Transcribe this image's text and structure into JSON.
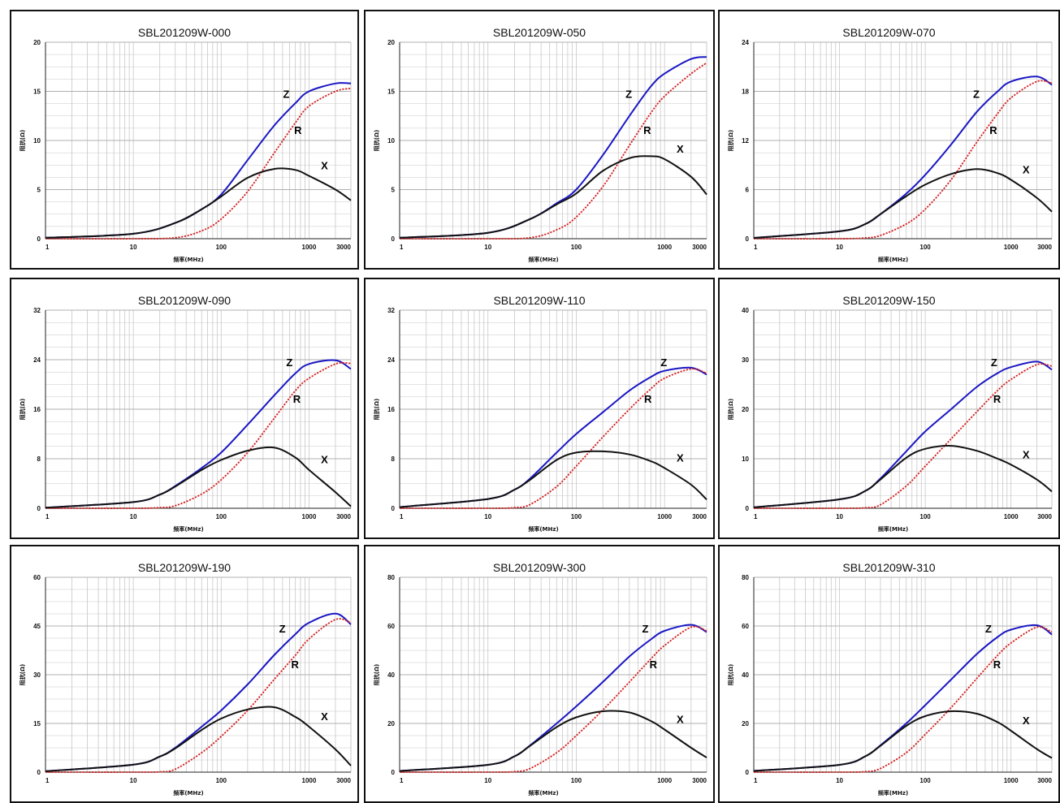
{
  "colors": {
    "Z": "#1a17c4",
    "R": "#d42020",
    "X": "#111111",
    "grid": "#c8c8c8",
    "border": "#111111"
  },
  "chart_data": [
    {
      "type": "line",
      "title": "SBL201209W-000",
      "xlabel": "频率(MHz)",
      "ylabel": "阻抗(Ω)",
      "x_scale": "log",
      "xlim": [
        1,
        3000
      ],
      "ylim": [
        0,
        20
      ],
      "yticks": [
        "0",
        "5",
        "10",
        "15",
        "20"
      ],
      "xticks": [
        "1",
        "10",
        "100",
        "1000",
        "3000"
      ],
      "grid": true,
      "series": [
        {
          "name": "Z",
          "x": [
            1,
            10,
            30,
            60,
            100,
            200,
            400,
            700,
            1000,
            2000,
            3000
          ],
          "y": [
            0.1,
            0.5,
            1.6,
            3.0,
            4.5,
            8.0,
            11.5,
            13.8,
            15.0,
            15.8,
            15.8
          ]
        },
        {
          "name": "R",
          "x": [
            1,
            10,
            30,
            60,
            100,
            200,
            400,
            700,
            1000,
            2000,
            3000
          ],
          "y": [
            0,
            0,
            0.1,
            0.8,
            2.0,
            4.8,
            8.7,
            11.8,
            13.5,
            15.0,
            15.3
          ]
        },
        {
          "name": "X",
          "x": [
            1,
            10,
            30,
            60,
            100,
            200,
            400,
            700,
            1000,
            2000,
            3000
          ],
          "y": [
            0.1,
            0.5,
            1.6,
            3.0,
            4.3,
            6.2,
            7.1,
            7.0,
            6.4,
            5.0,
            3.9
          ]
        }
      ]
    },
    {
      "type": "line",
      "title": "SBL201209W-050",
      "xlabel": "频率(MHz)",
      "ylabel": "阻抗(Ω)",
      "x_scale": "log",
      "xlim": [
        1,
        3000
      ],
      "ylim": [
        0,
        20
      ],
      "yticks": [
        "0",
        "5",
        "10",
        "15",
        "20"
      ],
      "xticks": [
        "1",
        "10",
        "100",
        "1000",
        "3000"
      ],
      "grid": true,
      "series": [
        {
          "name": "Z",
          "x": [
            1,
            10,
            30,
            60,
            100,
            200,
            400,
            700,
            1000,
            2000,
            3000
          ],
          "y": [
            0.1,
            0.6,
            2.0,
            3.6,
            5.0,
            8.5,
            12.5,
            15.5,
            16.8,
            18.3,
            18.5
          ]
        },
        {
          "name": "R",
          "x": [
            1,
            10,
            30,
            60,
            100,
            200,
            400,
            700,
            1000,
            2000,
            3000
          ],
          "y": [
            0,
            0,
            0.1,
            0.9,
            2.2,
            5.3,
            9.5,
            12.8,
            14.5,
            16.8,
            17.9
          ]
        },
        {
          "name": "X",
          "x": [
            1,
            10,
            30,
            60,
            100,
            200,
            400,
            700,
            1000,
            2000,
            3000
          ],
          "y": [
            0.1,
            0.6,
            2.0,
            3.5,
            4.6,
            6.9,
            8.2,
            8.4,
            8.1,
            6.3,
            4.5
          ]
        }
      ]
    },
    {
      "type": "line",
      "title": "SBL201209W-070",
      "xlabel": "频率(MHz)",
      "ylabel": "阻抗(Ω)",
      "x_scale": "log",
      "xlim": [
        1,
        3000
      ],
      "ylim": [
        0,
        24
      ],
      "yticks": [
        "0",
        "6",
        "12",
        "18",
        "24"
      ],
      "xticks": [
        "1",
        "10",
        "100",
        "1000",
        "3000"
      ],
      "grid": true,
      "series": [
        {
          "name": "Z",
          "x": [
            1,
            10,
            20,
            30,
            60,
            100,
            200,
            400,
            700,
            1000,
            2000,
            3000
          ],
          "y": [
            0.1,
            0.9,
            1.8,
            3.0,
            5.5,
            7.8,
            11.5,
            15.5,
            18.0,
            19.2,
            19.8,
            18.8
          ]
        },
        {
          "name": "R",
          "x": [
            1,
            10,
            20,
            30,
            60,
            100,
            200,
            400,
            700,
            1000,
            2000,
            3000
          ],
          "y": [
            0,
            0,
            0.1,
            0.4,
            1.8,
            3.6,
            7.2,
            11.8,
            15.3,
            17.2,
            19.2,
            19.0
          ]
        },
        {
          "name": "X",
          "x": [
            1,
            10,
            20,
            30,
            60,
            100,
            200,
            400,
            700,
            1000,
            2000,
            3000
          ],
          "y": [
            0.1,
            0.9,
            1.8,
            3.0,
            5.2,
            6.6,
            7.9,
            8.5,
            8.0,
            7.2,
            5.0,
            3.3
          ]
        }
      ]
    },
    {
      "type": "line",
      "title": "SBL201209W-090",
      "xlabel": "频率(MHz)",
      "ylabel": "阻抗(Ω)",
      "x_scale": "log",
      "xlim": [
        1,
        3000
      ],
      "ylim": [
        0,
        32
      ],
      "yticks": [
        "0",
        "8",
        "16",
        "24",
        "32"
      ],
      "xticks": [
        "1",
        "10",
        "100",
        "1000",
        "3000"
      ],
      "grid": true,
      "series": [
        {
          "name": "Z",
          "x": [
            1,
            10,
            20,
            30,
            60,
            100,
            200,
            400,
            700,
            1000,
            2000,
            3000
          ],
          "y": [
            0.1,
            1.0,
            2.2,
            3.6,
            6.5,
            9.0,
            13.5,
            18.2,
            21.8,
            23.3,
            23.9,
            22.5
          ]
        },
        {
          "name": "R",
          "x": [
            1,
            10,
            20,
            30,
            60,
            100,
            200,
            400,
            700,
            1000,
            2000,
            3000
          ],
          "y": [
            0,
            0,
            0.1,
            0.4,
            2.3,
            4.6,
            9.0,
            14.5,
            19.0,
            21.0,
            23.3,
            23.4
          ]
        },
        {
          "name": "X",
          "x": [
            1,
            10,
            20,
            30,
            60,
            100,
            200,
            400,
            700,
            1000,
            2000,
            3000
          ],
          "y": [
            0.1,
            1.0,
            2.2,
            3.5,
            6.2,
            7.8,
            9.3,
            9.8,
            8.2,
            6.2,
            2.6,
            0.3
          ]
        }
      ]
    },
    {
      "type": "line",
      "title": "SBL201209W-110",
      "xlabel": "频率(MHz)",
      "ylabel": "阻抗(Ω)",
      "x_scale": "log",
      "xlim": [
        1,
        3000
      ],
      "ylim": [
        0,
        32
      ],
      "yticks": [
        "0",
        "8",
        "16",
        "24",
        "32"
      ],
      "xticks": [
        "1",
        "10",
        "100",
        "1000",
        "3000"
      ],
      "grid": true,
      "series": [
        {
          "name": "Z",
          "x": [
            1,
            10,
            20,
            30,
            60,
            100,
            200,
            400,
            700,
            1000,
            2000,
            3000
          ],
          "y": [
            0.2,
            1.5,
            3.0,
            4.8,
            9.0,
            12.0,
            15.5,
            19.0,
            21.2,
            22.2,
            22.7,
            21.6
          ]
        },
        {
          "name": "R",
          "x": [
            1,
            10,
            20,
            30,
            60,
            100,
            200,
            400,
            700,
            1000,
            2000,
            3000
          ],
          "y": [
            0,
            0,
            0.1,
            0.6,
            3.5,
            6.8,
            11.5,
            16.0,
            19.3,
            21.0,
            22.5,
            21.8
          ]
        },
        {
          "name": "X",
          "x": [
            1,
            10,
            20,
            30,
            60,
            100,
            200,
            400,
            700,
            1000,
            2000,
            3000
          ],
          "y": [
            0.2,
            1.5,
            3.0,
            4.6,
            7.8,
            9.0,
            9.2,
            8.7,
            7.6,
            6.5,
            3.8,
            1.4
          ]
        }
      ]
    },
    {
      "type": "line",
      "title": "SBL201209W-150",
      "xlabel": "频率(MHz)",
      "ylabel": "阻抗(Ω)",
      "x_scale": "log",
      "xlim": [
        1,
        3000
      ],
      "ylim": [
        0,
        40
      ],
      "yticks": [
        "0",
        "10",
        "20",
        "30",
        "40"
      ],
      "xticks": [
        "1",
        "10",
        "100",
        "1000",
        "3000"
      ],
      "grid": true,
      "series": [
        {
          "name": "Z",
          "x": [
            1,
            10,
            20,
            30,
            60,
            100,
            200,
            400,
            700,
            1000,
            2000,
            3000
          ],
          "y": [
            0.2,
            1.8,
            3.5,
            6.0,
            11.5,
            15.5,
            20.0,
            24.5,
            27.3,
            28.5,
            29.6,
            28.0
          ]
        },
        {
          "name": "R",
          "x": [
            1,
            10,
            20,
            30,
            60,
            100,
            200,
            400,
            700,
            1000,
            2000,
            3000
          ],
          "y": [
            0,
            0,
            0.1,
            0.7,
            4.5,
            8.5,
            14.0,
            19.5,
            23.8,
            26.0,
            29.0,
            28.7
          ]
        },
        {
          "name": "X",
          "x": [
            1,
            10,
            20,
            30,
            60,
            100,
            200,
            400,
            700,
            1000,
            2000,
            3000
          ],
          "y": [
            0.2,
            1.8,
            3.5,
            5.8,
            10.2,
            12.0,
            12.6,
            11.6,
            10.0,
            8.8,
            5.8,
            3.4
          ]
        }
      ]
    },
    {
      "type": "line",
      "title": "SBL201209W-190",
      "xlabel": "频率(MHz)",
      "ylabel": "阻抗(Ω)",
      "x_scale": "log",
      "xlim": [
        1,
        3000
      ],
      "ylim": [
        0,
        60
      ],
      "yticks": [
        "0",
        "15",
        "30",
        "45",
        "60"
      ],
      "xticks": [
        "1",
        "10",
        "100",
        "1000",
        "3000"
      ],
      "grid": true,
      "series": [
        {
          "name": "Z",
          "x": [
            1,
            10,
            20,
            30,
            60,
            100,
            200,
            400,
            700,
            1000,
            2000,
            3000
          ],
          "y": [
            0.3,
            2.3,
            4.8,
            7.5,
            14.0,
            19.0,
            27.0,
            36.0,
            42.5,
            46.0,
            48.8,
            45.5
          ]
        },
        {
          "name": "R",
          "x": [
            1,
            10,
            20,
            30,
            60,
            100,
            200,
            400,
            700,
            1000,
            2000,
            3000
          ],
          "y": [
            0,
            0,
            0.1,
            0.9,
            6.0,
            11.0,
            19.0,
            28.5,
            36.0,
            41.0,
            47.0,
            46.0
          ]
        },
        {
          "name": "X",
          "x": [
            1,
            10,
            20,
            30,
            60,
            100,
            200,
            400,
            700,
            1000,
            2000,
            3000
          ],
          "y": [
            0.3,
            2.3,
            4.8,
            7.3,
            13.0,
            16.5,
            19.3,
            20.0,
            17.0,
            14.0,
            7.0,
            2.0
          ]
        }
      ]
    },
    {
      "type": "line",
      "title": "SBL201209W-300",
      "xlabel": "频率(MHz)",
      "ylabel": "阻抗(Ω)",
      "x_scale": "log",
      "xlim": [
        1,
        3000
      ],
      "ylim": [
        0,
        80
      ],
      "yticks": [
        "0",
        "20",
        "40",
        "60",
        "80"
      ],
      "xticks": [
        "1",
        "10",
        "100",
        "1000",
        "3000"
      ],
      "grid": true,
      "series": [
        {
          "name": "Z",
          "x": [
            1,
            10,
            20,
            30,
            60,
            100,
            200,
            400,
            700,
            1000,
            2000,
            3000
          ],
          "y": [
            0.5,
            3.0,
            6.5,
            11.0,
            20.0,
            27.0,
            37.0,
            47.5,
            54.5,
            58.0,
            60.5,
            57.5
          ]
        },
        {
          "name": "R",
          "x": [
            1,
            10,
            20,
            30,
            60,
            100,
            200,
            400,
            700,
            1000,
            2000,
            3000
          ],
          "y": [
            0,
            0,
            0.2,
            1.5,
            8.0,
            15.0,
            25.5,
            37.0,
            46.5,
            52.0,
            59.5,
            58.0
          ]
        },
        {
          "name": "X",
          "x": [
            1,
            10,
            20,
            30,
            60,
            100,
            200,
            400,
            700,
            1000,
            2000,
            3000
          ],
          "y": [
            0.5,
            3.0,
            6.5,
            10.8,
            18.5,
            22.5,
            25.0,
            24.5,
            21.0,
            17.5,
            10.0,
            6.0
          ]
        }
      ]
    },
    {
      "type": "line",
      "title": "SBL201209W-310",
      "xlabel": "频率(MHz)",
      "ylabel": "阻抗(Ω)",
      "x_scale": "log",
      "xlim": [
        1,
        3000
      ],
      "ylim": [
        0,
        80
      ],
      "yticks": [
        "0",
        "20",
        "40",
        "60",
        "80"
      ],
      "xticks": [
        "1",
        "10",
        "100",
        "1000",
        "3000"
      ],
      "grid": true,
      "series": [
        {
          "name": "Z",
          "x": [
            1,
            10,
            20,
            30,
            60,
            100,
            200,
            400,
            700,
            1000,
            2000,
            3000
          ],
          "y": [
            0.5,
            3.0,
            6.5,
            11.0,
            20.0,
            27.5,
            38.0,
            48.5,
            55.5,
            58.5,
            60.3,
            56.5
          ]
        },
        {
          "name": "R",
          "x": [
            1,
            10,
            20,
            30,
            60,
            100,
            200,
            400,
            700,
            1000,
            2000,
            3000
          ],
          "y": [
            0,
            0,
            0.2,
            1.5,
            8.0,
            15.5,
            26.5,
            38.5,
            48.0,
            53.0,
            59.5,
            57.5
          ]
        },
        {
          "name": "X",
          "x": [
            1,
            10,
            20,
            30,
            60,
            100,
            200,
            400,
            700,
            1000,
            2000,
            3000
          ],
          "y": [
            0.5,
            3.0,
            6.5,
            10.8,
            19.0,
            23.0,
            25.0,
            24.0,
            20.5,
            17.0,
            9.5,
            5.8
          ]
        }
      ]
    }
  ]
}
